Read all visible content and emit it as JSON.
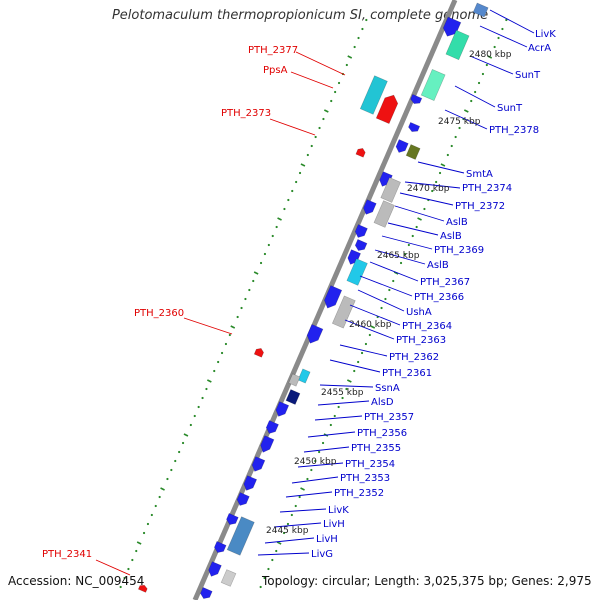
{
  "title": "Pelotomaculum thermopropionicum SI, complete genome",
  "accession": "Accession: NC_009454",
  "topology": "Topology: circular; Length: 3,025,375 bp; Genes: 2,975",
  "colors": {
    "red": "#e00000",
    "blue": "#0000cc",
    "backbone": "#888888",
    "dots": "#2a8a2a"
  },
  "kbp_marks": [
    "2480 kbp",
    "2475 kbp",
    "2470 kbp",
    "2465 kbp",
    "2460 kbp",
    "2455 kbp",
    "2450 kbp",
    "2445 kbp"
  ],
  "left_labels": [
    "PTH_2377",
    "PpsA",
    "PTH_2373",
    "PTH_2360",
    "PTH_2341"
  ],
  "right_labels": [
    "LivK",
    "AcrA",
    "SunT",
    "SunT",
    "PTH_2378",
    "SmtA",
    "PTH_2374",
    "PTH_2372",
    "AslB",
    "AslB",
    "PTH_2369",
    "AslB",
    "PTH_2367",
    "PTH_2366",
    "UshA",
    "PTH_2364",
    "PTH_2363",
    "PTH_2362",
    "PTH_2361",
    "SsnA",
    "AlsD",
    "PTH_2357",
    "PTH_2356",
    "PTH_2355",
    "PTH_2354",
    "PTH_2353",
    "PTH_2352",
    "LivK",
    "LivH",
    "LivH",
    "LivG"
  ]
}
